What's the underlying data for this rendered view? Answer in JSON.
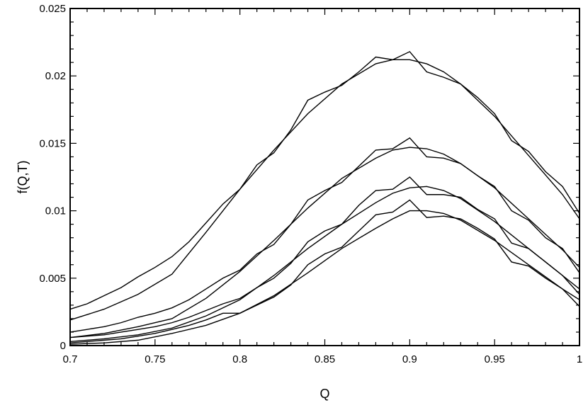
{
  "chart_data": {
    "type": "line",
    "title": "",
    "xlabel": "Q",
    "ylabel": "f(Q,T)",
    "xlim": [
      0.7,
      1.0
    ],
    "ylim": [
      0,
      0.025
    ],
    "x_ticks": [
      0.7,
      0.75,
      0.8,
      0.85,
      0.9,
      0.95,
      1.0
    ],
    "x_tick_labels": [
      "0.7",
      "0.75",
      "0.8",
      "0.85",
      "0.9",
      "0.95",
      "1"
    ],
    "y_ticks": [
      0,
      0.005,
      0.01,
      0.015,
      0.02,
      0.025
    ],
    "y_tick_labels": [
      "0",
      "0.005",
      "0.01",
      "0.015",
      "0.02",
      "0.025"
    ],
    "grid": false,
    "line_color": "#000000",
    "series": [
      {
        "x": [
          0.7,
          0.71,
          0.72,
          0.73,
          0.74,
          0.75,
          0.76,
          0.77,
          0.78,
          0.79,
          0.8,
          0.81,
          0.82,
          0.83,
          0.84,
          0.85,
          0.86,
          0.87,
          0.88,
          0.89,
          0.9,
          0.91,
          0.92,
          0.93,
          0.94,
          0.95,
          0.96,
          0.97,
          0.98,
          0.99,
          1.0
        ],
        "y": [
          0.0027,
          0.0031,
          0.0037,
          0.0043,
          0.0051,
          0.0058,
          0.0066,
          0.0077,
          0.0091,
          0.0105,
          0.0116,
          0.0134,
          0.0143,
          0.016,
          0.0182,
          0.0188,
          0.0193,
          0.0203,
          0.0214,
          0.0212,
          0.0218,
          0.0203,
          0.0199,
          0.0194,
          0.0184,
          0.0172,
          0.0152,
          0.0144,
          0.0129,
          0.0118,
          0.0098
        ]
      },
      {
        "x": [
          0.7,
          0.72,
          0.74,
          0.76,
          0.78,
          0.8,
          0.82,
          0.84,
          0.86,
          0.88,
          0.89,
          0.9,
          0.91,
          0.92,
          0.93,
          0.95,
          0.97,
          0.99,
          1.0
        ],
        "y": [
          0.0019,
          0.0027,
          0.0038,
          0.0053,
          0.0084,
          0.0116,
          0.0145,
          0.0172,
          0.0194,
          0.0209,
          0.0212,
          0.0212,
          0.0209,
          0.0203,
          0.0194,
          0.017,
          0.0141,
          0.0112,
          0.0094
        ]
      },
      {
        "x": [
          0.7,
          0.71,
          0.72,
          0.73,
          0.74,
          0.75,
          0.76,
          0.77,
          0.78,
          0.79,
          0.8,
          0.81,
          0.82,
          0.83,
          0.84,
          0.85,
          0.86,
          0.87,
          0.88,
          0.89,
          0.9,
          0.91,
          0.92,
          0.93,
          0.94,
          0.95,
          0.96,
          0.97,
          0.98,
          0.99,
          1.0
        ],
        "y": [
          0.001,
          0.0012,
          0.0014,
          0.0017,
          0.0021,
          0.0024,
          0.0028,
          0.0034,
          0.0042,
          0.005,
          0.0056,
          0.0068,
          0.0075,
          0.009,
          0.0108,
          0.0115,
          0.0121,
          0.0133,
          0.0145,
          0.0146,
          0.0154,
          0.014,
          0.0139,
          0.0135,
          0.0126,
          0.0118,
          0.01,
          0.0093,
          0.008,
          0.0072,
          0.0054
        ]
      },
      {
        "x": [
          0.7,
          0.72,
          0.74,
          0.76,
          0.78,
          0.8,
          0.82,
          0.84,
          0.86,
          0.88,
          0.89,
          0.9,
          0.91,
          0.92,
          0.93,
          0.95,
          0.97,
          0.99,
          1.0
        ],
        "y": [
          0.0006,
          0.0009,
          0.0014,
          0.002,
          0.0035,
          0.0055,
          0.0078,
          0.0102,
          0.0124,
          0.0139,
          0.0145,
          0.0147,
          0.0146,
          0.0142,
          0.0135,
          0.0117,
          0.0094,
          0.0071,
          0.0058
        ]
      },
      {
        "x": [
          0.7,
          0.71,
          0.72,
          0.73,
          0.74,
          0.75,
          0.76,
          0.77,
          0.78,
          0.79,
          0.8,
          0.81,
          0.82,
          0.83,
          0.84,
          0.85,
          0.86,
          0.87,
          0.88,
          0.89,
          0.9,
          0.91,
          0.92,
          0.93,
          0.94,
          0.95,
          0.96,
          0.97,
          0.98,
          0.99,
          1.0
        ],
        "y": [
          0.0006,
          0.0007,
          0.0008,
          0.001,
          0.0012,
          0.0014,
          0.0017,
          0.0021,
          0.0026,
          0.0031,
          0.0035,
          0.0043,
          0.005,
          0.0061,
          0.0077,
          0.0085,
          0.009,
          0.0104,
          0.0115,
          0.0116,
          0.0125,
          0.0112,
          0.0112,
          0.011,
          0.0101,
          0.0094,
          0.0076,
          0.0072,
          0.0062,
          0.0052,
          0.0038
        ]
      },
      {
        "x": [
          0.7,
          0.72,
          0.74,
          0.76,
          0.78,
          0.8,
          0.82,
          0.84,
          0.86,
          0.88,
          0.89,
          0.9,
          0.91,
          0.92,
          0.93,
          0.95,
          0.97,
          0.99,
          1.0
        ],
        "y": [
          0.0003,
          0.0005,
          0.0008,
          0.0013,
          0.0022,
          0.0034,
          0.0052,
          0.0072,
          0.009,
          0.0106,
          0.0113,
          0.0117,
          0.0118,
          0.0115,
          0.0109,
          0.0092,
          0.0072,
          0.0052,
          0.0042
        ]
      },
      {
        "x": [
          0.7,
          0.71,
          0.72,
          0.73,
          0.74,
          0.75,
          0.76,
          0.77,
          0.78,
          0.79,
          0.8,
          0.81,
          0.82,
          0.83,
          0.84,
          0.85,
          0.86,
          0.87,
          0.88,
          0.89,
          0.9,
          0.91,
          0.92,
          0.93,
          0.94,
          0.95,
          0.96,
          0.97,
          0.98,
          0.99,
          1.0
        ],
        "y": [
          0.0002,
          0.0003,
          0.0004,
          0.0005,
          0.0007,
          0.0009,
          0.0012,
          0.0015,
          0.0019,
          0.0024,
          0.0024,
          0.003,
          0.0036,
          0.0045,
          0.006,
          0.0068,
          0.0073,
          0.0085,
          0.0097,
          0.0099,
          0.0108,
          0.0095,
          0.0096,
          0.0094,
          0.0087,
          0.0079,
          0.0062,
          0.0059,
          0.005,
          0.0042,
          0.0029
        ]
      },
      {
        "x": [
          0.7,
          0.72,
          0.74,
          0.76,
          0.78,
          0.8,
          0.82,
          0.84,
          0.86,
          0.88,
          0.89,
          0.9,
          0.91,
          0.92,
          0.93,
          0.95,
          0.97,
          0.99,
          1.0
        ],
        "y": [
          0.0001,
          0.0002,
          0.0004,
          0.0009,
          0.0015,
          0.0024,
          0.0037,
          0.0054,
          0.0072,
          0.0087,
          0.0094,
          0.01,
          0.01,
          0.0098,
          0.0093,
          0.0078,
          0.006,
          0.0042,
          0.0034
        ]
      }
    ]
  }
}
